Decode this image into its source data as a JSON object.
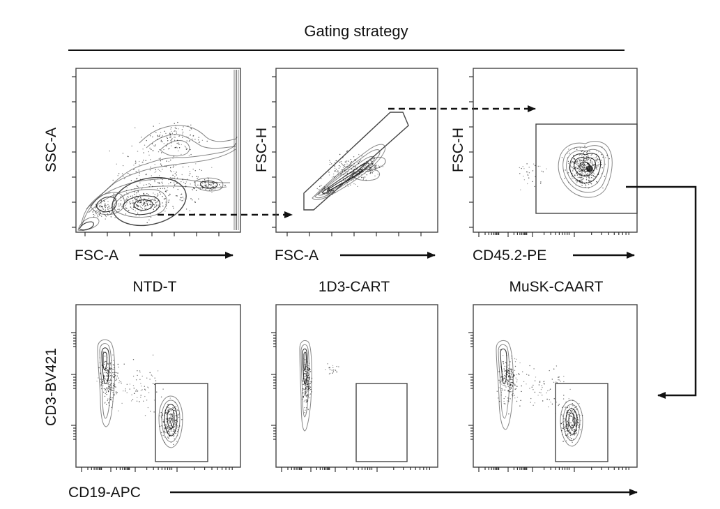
{
  "header": {
    "title": "Gating strategy"
  },
  "panels": {
    "p1": {
      "y_label": "SSC-A",
      "x_label": "FSC-A"
    },
    "p2": {
      "y_label": "FSC-H",
      "x_label": "FSC-A"
    },
    "p3": {
      "y_label": "FSC-H",
      "x_label": "CD45.2-PE"
    }
  },
  "conditions": [
    {
      "label": "NTD-T",
      "color": "#111111"
    },
    {
      "label": "1D3-CART",
      "color": "#2a2ab8"
    },
    {
      "label": "MuSK-CAART",
      "color": "#d42020"
    }
  ],
  "bottom_axes": {
    "y_label": "CD3-BV421",
    "x_label": "CD19-APC"
  }
}
